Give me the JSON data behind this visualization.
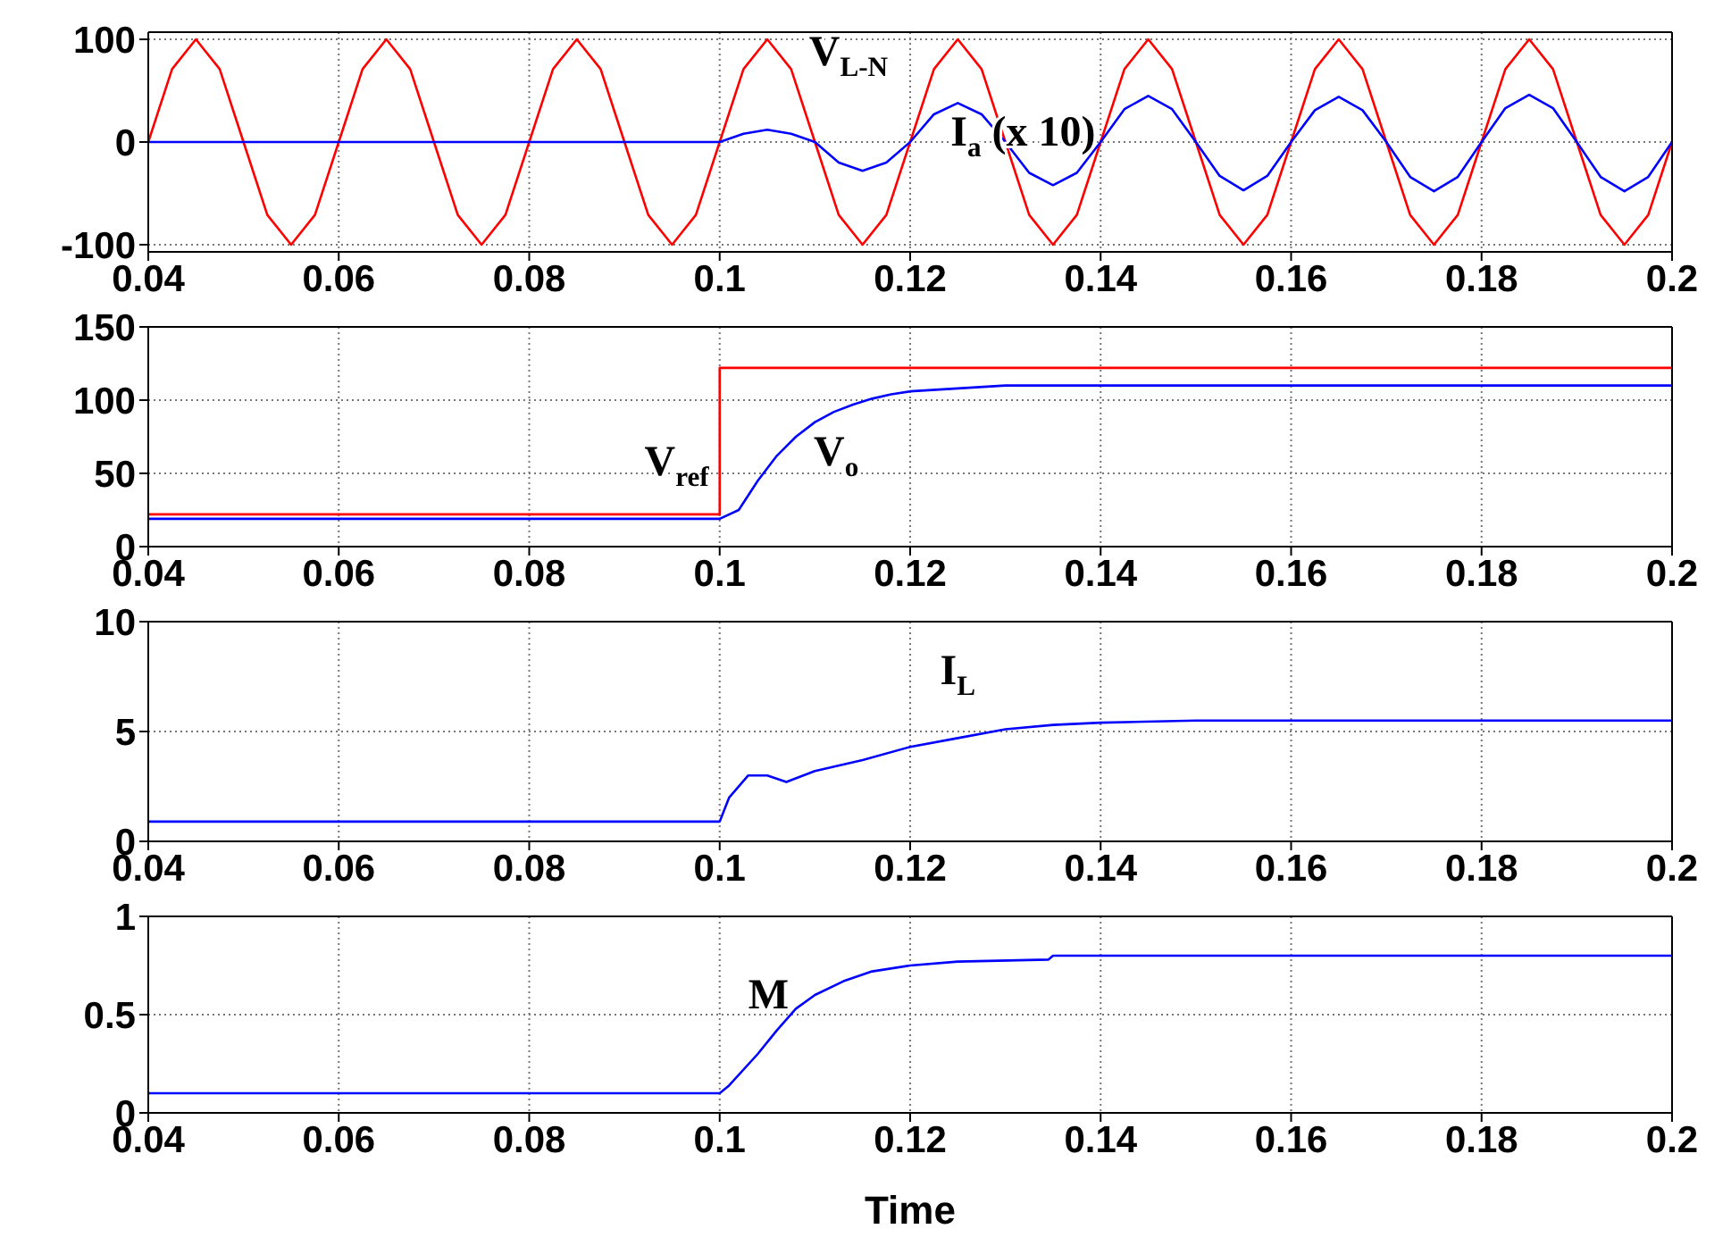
{
  "chart_data": [
    {
      "type": "line",
      "xlim": [
        0.04,
        0.2
      ],
      "xticks": [
        0.04,
        0.06,
        0.08,
        0.1,
        0.12,
        0.14,
        0.16,
        0.18,
        0.2
      ],
      "ylim": [
        -107,
        107
      ],
      "yticks": [
        -100,
        0,
        100
      ],
      "grid": true,
      "annotations": [
        {
          "text": "V$_{L-N}$",
          "x": 0.1075,
          "y": 71
        },
        {
          "text": "I$_{a}$ (x 10)",
          "x": 0.125,
          "y": 38
        }
      ],
      "series": [
        {
          "color": "#ff0000",
          "x": [
            0.04,
            0.0425,
            0.045,
            0.0475,
            0.05,
            0.0525,
            0.055,
            0.0575,
            0.06,
            0.0625,
            0.065,
            0.0675,
            0.07,
            0.0725,
            0.075,
            0.0775,
            0.08,
            0.0825,
            0.085,
            0.0875,
            0.09,
            0.0925,
            0.095,
            0.0975,
            0.1,
            0.1025,
            0.105,
            0.1075,
            0.11,
            0.1125,
            0.115,
            0.1175,
            0.12,
            0.1225,
            0.125,
            0.1275,
            0.13,
            0.1325,
            0.135,
            0.1375,
            0.14,
            0.1425,
            0.145,
            0.1475,
            0.15,
            0.1525,
            0.155,
            0.1575,
            0.16,
            0.1625,
            0.165,
            0.1675,
            0.17,
            0.1725,
            0.175,
            0.1775,
            0.18,
            0.1825,
            0.185,
            0.1875,
            0.19,
            0.1925,
            0.195,
            0.1975,
            0.2
          ],
          "values": [
            0,
            71,
            100,
            71,
            0,
            -71,
            -100,
            -71,
            0,
            71,
            100,
            71,
            0,
            -71,
            -100,
            -71,
            0,
            71,
            100,
            71,
            0,
            -71,
            -100,
            -71,
            0,
            71,
            100,
            71,
            0,
            -71,
            -100,
            -71,
            0,
            71,
            100,
            71,
            0,
            -71,
            -100,
            -71,
            0,
            71,
            100,
            71,
            0,
            -71,
            -100,
            -71,
            0,
            71,
            100,
            71,
            0,
            -71,
            -100,
            -71,
            0,
            71,
            100,
            71,
            0,
            -71,
            -100,
            -71,
            0
          ]
        },
        {
          "color": "#0000ff",
          "x": [
            0.04,
            0.1,
            0.1025,
            0.105,
            0.1075,
            0.11,
            0.1125,
            0.115,
            0.1175,
            0.12,
            0.1225,
            0.125,
            0.1275,
            0.13,
            0.1325,
            0.135,
            0.1375,
            0.14,
            0.1425,
            0.145,
            0.1475,
            0.15,
            0.1525,
            0.155,
            0.1575,
            0.16,
            0.1625,
            0.165,
            0.1675,
            0.17,
            0.1725,
            0.175,
            0.1775,
            0.18,
            0.1825,
            0.185,
            0.1875,
            0.19,
            0.1925,
            0.195,
            0.1975,
            0.2
          ],
          "values": [
            0,
            0,
            8,
            12,
            8,
            0,
            -20,
            -28,
            -20,
            0,
            27,
            38,
            27,
            0,
            -30,
            -42,
            -30,
            0,
            32,
            45,
            32,
            0,
            -33,
            -47,
            -33,
            0,
            31,
            44,
            31,
            0,
            -34,
            -48,
            -34,
            0,
            33,
            46,
            33,
            0,
            -34,
            -48,
            -34,
            0
          ]
        }
      ]
    },
    {
      "type": "line",
      "xlim": [
        0.04,
        0.2
      ],
      "xticks": [
        0.04,
        0.06,
        0.08,
        0.1,
        0.12,
        0.14,
        0.16,
        0.18,
        0.2
      ],
      "ylim": [
        0,
        150
      ],
      "yticks": [
        0,
        50,
        100,
        150
      ],
      "grid": true,
      "annotations": [
        {
          "text": "V$_{ref}$",
          "x": 0.1,
          "y": 22
        },
        {
          "text": "V$_{o}$",
          "x": 0.108,
          "y": 75
        }
      ],
      "series": [
        {
          "color": "#ff0000",
          "x": [
            0.04,
            0.1,
            0.1,
            0.2
          ],
          "values": [
            22,
            22,
            122,
            122
          ]
        },
        {
          "color": "#0000ff",
          "x": [
            0.04,
            0.1,
            0.102,
            0.104,
            0.106,
            0.108,
            0.11,
            0.112,
            0.114,
            0.116,
            0.118,
            0.12,
            0.125,
            0.13,
            0.2
          ],
          "values": [
            19,
            19,
            25,
            45,
            62,
            75,
            85,
            92,
            97,
            101,
            104,
            106,
            108,
            110,
            110
          ]
        }
      ]
    },
    {
      "type": "line",
      "xlim": [
        0.04,
        0.2
      ],
      "xticks": [
        0.04,
        0.06,
        0.08,
        0.1,
        0.12,
        0.14,
        0.16,
        0.18,
        0.2
      ],
      "ylim": [
        0,
        10
      ],
      "yticks": [
        0,
        5,
        10
      ],
      "grid": true,
      "annotations": [
        {
          "text": "I$_{L}$",
          "x": 0.125,
          "y": 4.7
        }
      ],
      "series": [
        {
          "color": "#0000ff",
          "x": [
            0.04,
            0.1,
            0.101,
            0.103,
            0.105,
            0.107,
            0.11,
            0.115,
            0.12,
            0.125,
            0.13,
            0.135,
            0.14,
            0.15,
            0.2
          ],
          "values": [
            0.9,
            0.9,
            2,
            3,
            3,
            2.7,
            3.2,
            3.7,
            4.3,
            4.7,
            5.1,
            5.3,
            5.4,
            5.5,
            5.5
          ]
        }
      ]
    },
    {
      "type": "line",
      "xlim": [
        0.04,
        0.2
      ],
      "xticks": [
        0.04,
        0.06,
        0.08,
        0.1,
        0.12,
        0.14,
        0.16,
        0.18,
        0.2
      ],
      "ylim": [
        0,
        1
      ],
      "yticks": [
        0,
        0.5,
        1
      ],
      "grid": true,
      "xlabel": "Time",
      "annotations": [
        {
          "text": "M",
          "x": 0.108,
          "y": 0.53
        }
      ],
      "series": [
        {
          "color": "#0000ff",
          "x": [
            0.04,
            0.1,
            0.101,
            0.104,
            0.106,
            0.108,
            0.11,
            0.113,
            0.116,
            0.12,
            0.125,
            0.1345,
            0.135,
            0.2
          ],
          "values": [
            0.1,
            0.1,
            0.14,
            0.3,
            0.42,
            0.53,
            0.6,
            0.67,
            0.72,
            0.75,
            0.77,
            0.78,
            0.8,
            0.8
          ]
        }
      ]
    }
  ]
}
